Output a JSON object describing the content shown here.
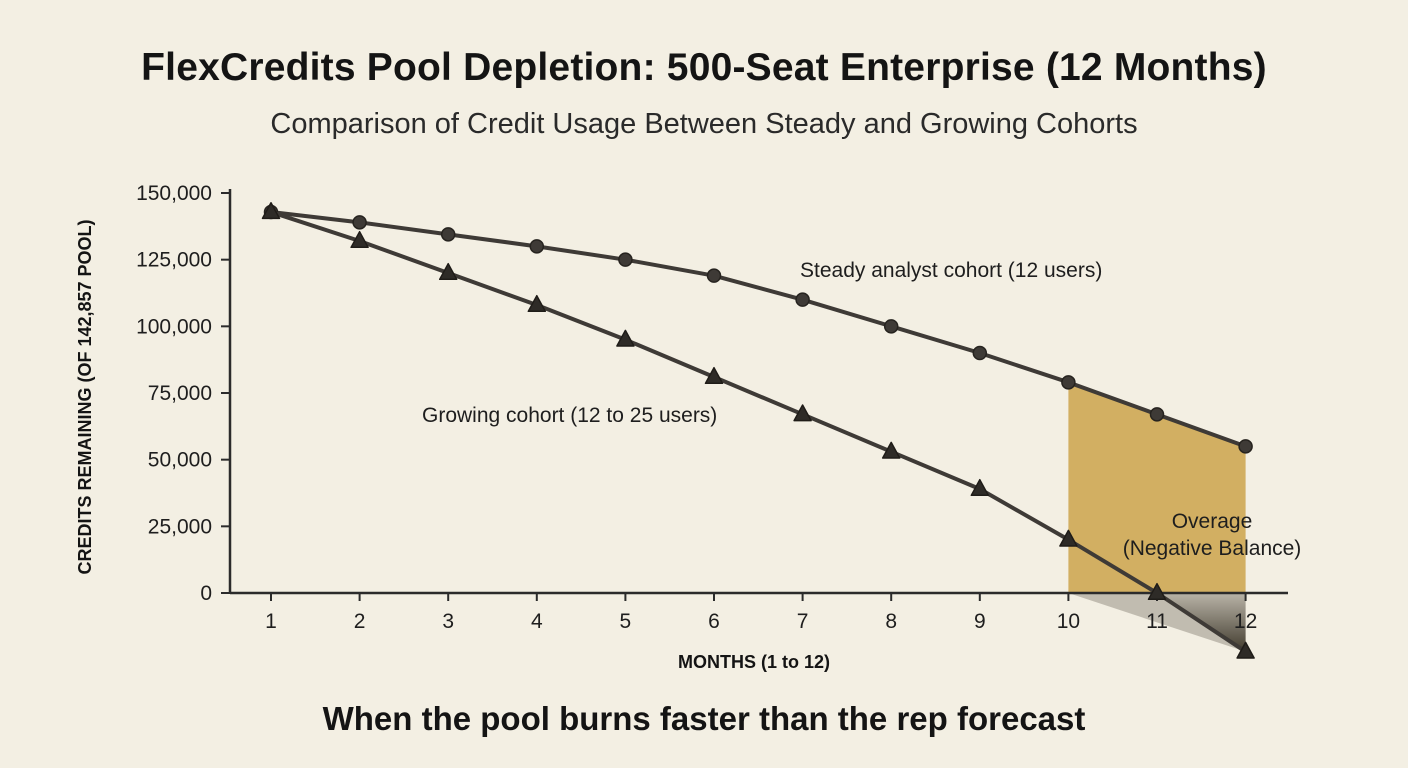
{
  "chart_data": {
    "type": "line",
    "title": "FlexCredits Pool Depletion: 500-Seat Enterprise (12 Months)",
    "subtitle": "Comparison of Credit Usage Between Steady and Growing Cohorts",
    "footer": "When the pool burns faster than the rep forecast",
    "xlabel": "MONTHS (1 to 12)",
    "ylabel": "CREDITS REMAINING (OF 142,857 POOL)",
    "x": [
      1,
      2,
      3,
      4,
      5,
      6,
      7,
      8,
      9,
      10,
      11,
      12
    ],
    "xticks": [
      "1",
      "2",
      "3",
      "4",
      "5",
      "6",
      "7",
      "8",
      "9",
      "10",
      "11",
      "12"
    ],
    "yticks": [
      "0",
      "25,000",
      "50,000",
      "75,000",
      "100,000",
      "125,000",
      "150,000"
    ],
    "ytick_values": [
      0,
      25000,
      50000,
      75000,
      100000,
      125000,
      150000
    ],
    "ylim": [
      0,
      150000
    ],
    "grid": false,
    "series": [
      {
        "name": "Steady analyst cohort (12 users)",
        "marker": "circle",
        "values": [
          142857,
          139000,
          134500,
          130000,
          125000,
          119000,
          110000,
          100000,
          90000,
          79000,
          67000,
          55000
        ]
      },
      {
        "name": "Growing cohort (12 to 25 users)",
        "marker": "triangle",
        "values": [
          142857,
          132000,
          120000,
          108000,
          95000,
          81000,
          67000,
          53000,
          39000,
          20000,
          0,
          -22000
        ]
      }
    ],
    "annotations": [
      {
        "text_line1": "Overage",
        "text_line2": "(Negative Balance)",
        "x_range": [
          10,
          12
        ]
      }
    ],
    "colors": {
      "background": "#f3efe3",
      "line": "#3e3a36",
      "axis": "#2b2b2b",
      "overage_fill": "#cfa957",
      "overage_shadow": "#2a2416"
    }
  }
}
